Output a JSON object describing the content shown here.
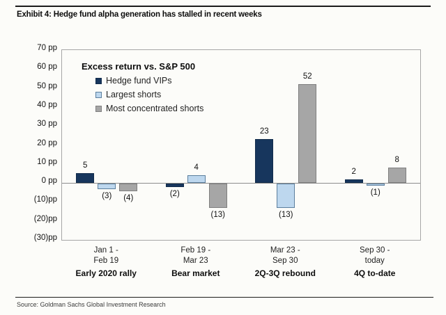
{
  "title": "Exhibit 4: Hedge fund alpha generation has stalled in recent weeks",
  "source": "Source: Goldman Sachs Global Investment Research",
  "chart_data": {
    "type": "bar",
    "title": "Exhibit 4: Hedge fund alpha generation has stalled in recent weeks",
    "legend_title": "Excess return vs. S&P 500",
    "legend_position": "top-left-inside",
    "unit": "pp",
    "ylim": [
      -30,
      70
    ],
    "grid": "zero-line-only",
    "xlabel": "",
    "ylabel": "",
    "y_tick_labels": [
      "70 pp",
      "60 pp",
      "50 pp",
      "40 pp",
      "30 pp",
      "20 pp",
      "10 pp",
      "0 pp",
      "(10)pp",
      "(20)pp",
      "(30)pp"
    ],
    "categories": [
      {
        "range_line1": "Jan 1 -",
        "range_line2": "Feb 19",
        "label": "Early 2020 rally"
      },
      {
        "range_line1": "Feb 19 -",
        "range_line2": "Mar 23",
        "label": "Bear market"
      },
      {
        "range_line1": "Mar 23 -",
        "range_line2": "Sep 30",
        "label": "2Q-3Q rebound"
      },
      {
        "range_line1": "Sep 30 -",
        "range_line2": "today",
        "label": "4Q to-date"
      }
    ],
    "series": [
      {
        "name": "Hedge fund VIPs",
        "color": "#17365d",
        "border_color": "#122c4b",
        "values": [
          5,
          -2,
          23,
          2
        ]
      },
      {
        "name": "Largest shorts",
        "color": "#bdd7ee",
        "border_color": "#5b7e9d",
        "values": [
          -3,
          4,
          -13,
          -1
        ]
      },
      {
        "name": "Most concentrated shorts",
        "color": "#a6a6a6",
        "border_color": "#7f7f7f",
        "values": [
          -4,
          -13,
          52,
          8
        ]
      }
    ]
  }
}
